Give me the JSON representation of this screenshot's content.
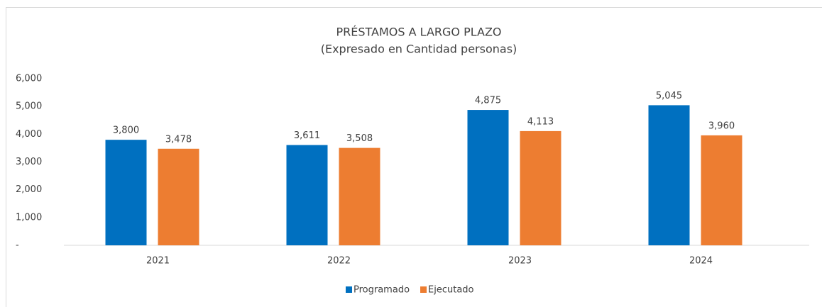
{
  "chart_data": {
    "type": "bar",
    "title": "PRÉSTAMOS A LARGO PLAZO",
    "subtitle": "(Expresado en Cantidad personas)",
    "categories": [
      "2021",
      "2022",
      "2023",
      "2024"
    ],
    "series": [
      {
        "name": "Programado",
        "color": "#0070c0",
        "values": [
          3800,
          3611,
          4875,
          5045
        ],
        "value_labels": [
          "3,800",
          "3,611",
          "4,875",
          "5,045"
        ]
      },
      {
        "name": "Ejecutado",
        "color": "#ed7d31",
        "values": [
          3478,
          3508,
          4113,
          3960
        ],
        "value_labels": [
          "3,478",
          "3,508",
          "4,113",
          "3,960"
        ]
      }
    ],
    "ylim": [
      0,
      6000
    ],
    "yticks": [
      {
        "value": 0,
        "label": "-"
      },
      {
        "value": 1000,
        "label": "1,000"
      },
      {
        "value": 2000,
        "label": "2,000"
      },
      {
        "value": 3000,
        "label": "3,000"
      },
      {
        "value": 4000,
        "label": "4,000"
      },
      {
        "value": 5000,
        "label": "5,000"
      },
      {
        "value": 6000,
        "label": "6,000"
      }
    ],
    "grid": false,
    "legend": "bottom"
  }
}
